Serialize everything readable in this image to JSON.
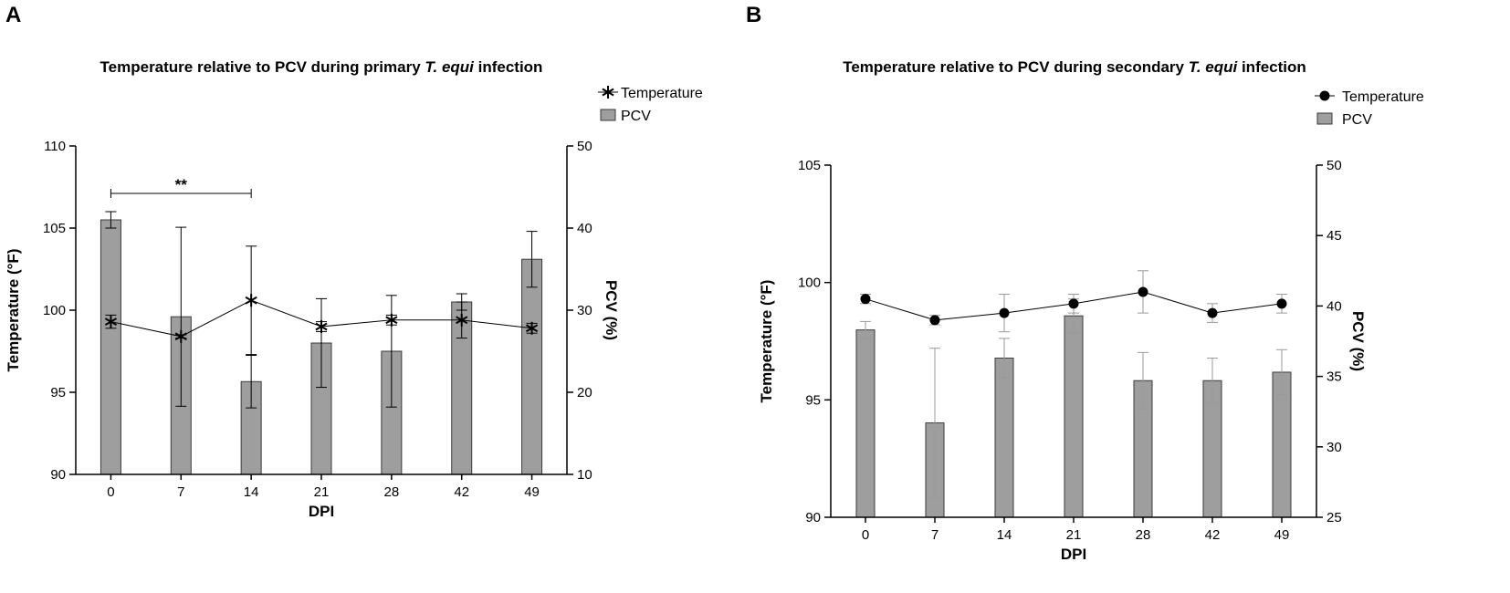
{
  "chart_data": [
    {
      "panel": "A",
      "type": "bar",
      "title_pre": "Temperature relative to PCV during primary ",
      "title_italic": "T. equi",
      "title_post": " infection",
      "xlabel": "DPI",
      "ylabel_left": "Temperature (°F)",
      "ylabel_right": "PCV (%)",
      "categories": [
        "0",
        "7",
        "14",
        "21",
        "28",
        "42",
        "49"
      ],
      "ylim_left": [
        90,
        110
      ],
      "yticks_left": [
        90,
        95,
        100,
        105,
        110
      ],
      "ylim_right": [
        10,
        50
      ],
      "yticks_right": [
        10,
        20,
        30,
        40,
        50
      ],
      "marker": "asterisk",
      "series": [
        {
          "name": "Temperature",
          "kind": "line",
          "axis": "left",
          "values": [
            99.3,
            98.4,
            100.6,
            99.0,
            99.4,
            99.4,
            98.9
          ],
          "err": [
            0.4,
            0.1,
            3.3,
            0.3,
            0.3,
            1.1,
            0.3
          ],
          "err_color": "#000000"
        },
        {
          "name": "PCV",
          "kind": "bar",
          "axis": "right",
          "values": [
            41.0,
            29.2,
            21.3,
            26.0,
            25.0,
            31.0,
            36.2
          ],
          "err": [
            1.0,
            10.9,
            3.2,
            5.4,
            6.8,
            1.0,
            3.4
          ],
          "err_color": "#000000"
        }
      ],
      "annotations": [
        {
          "from": "0",
          "to": "14",
          "label": "**"
        }
      ],
      "legend": [
        "Temperature",
        "PCV"
      ],
      "legend_position": "top-right"
    },
    {
      "panel": "B",
      "type": "bar",
      "title_pre": "Temperature relative to PCV during secondary ",
      "title_italic": "T. equi",
      "title_post": " infection",
      "xlabel": "DPI",
      "ylabel_left": "Temperature (°F)",
      "ylabel_right": "PCV (%)",
      "categories": [
        "0",
        "7",
        "14",
        "21",
        "28",
        "42",
        "49"
      ],
      "ylim_left": [
        90,
        105
      ],
      "yticks_left": [
        90,
        95,
        100,
        105
      ],
      "ylim_right": [
        25,
        50
      ],
      "yticks_right": [
        25,
        30,
        35,
        40,
        45,
        50
      ],
      "marker": "circle",
      "series": [
        {
          "name": "Temperature",
          "kind": "line",
          "axis": "left",
          "values": [
            99.3,
            98.4,
            98.7,
            99.1,
            99.6,
            98.7,
            99.1
          ],
          "err": [
            0.2,
            0.2,
            0.8,
            0.4,
            0.9,
            0.4,
            0.4
          ],
          "err_color": "#999999"
        },
        {
          "name": "PCV",
          "kind": "bar",
          "axis": "right",
          "values": [
            38.3,
            31.7,
            36.3,
            39.3,
            34.7,
            34.7,
            35.3
          ],
          "err": [
            0.6,
            5.3,
            1.4,
            1.2,
            2.0,
            1.6,
            1.6
          ],
          "err_color": "#999999"
        }
      ],
      "annotations": [],
      "legend": [
        "Temperature",
        "PCV"
      ],
      "legend_position": "top-right"
    }
  ],
  "colors": {
    "bar_fill": "#9e9e9e",
    "bar_stroke": "#3a3a3a",
    "line": "#000000"
  }
}
